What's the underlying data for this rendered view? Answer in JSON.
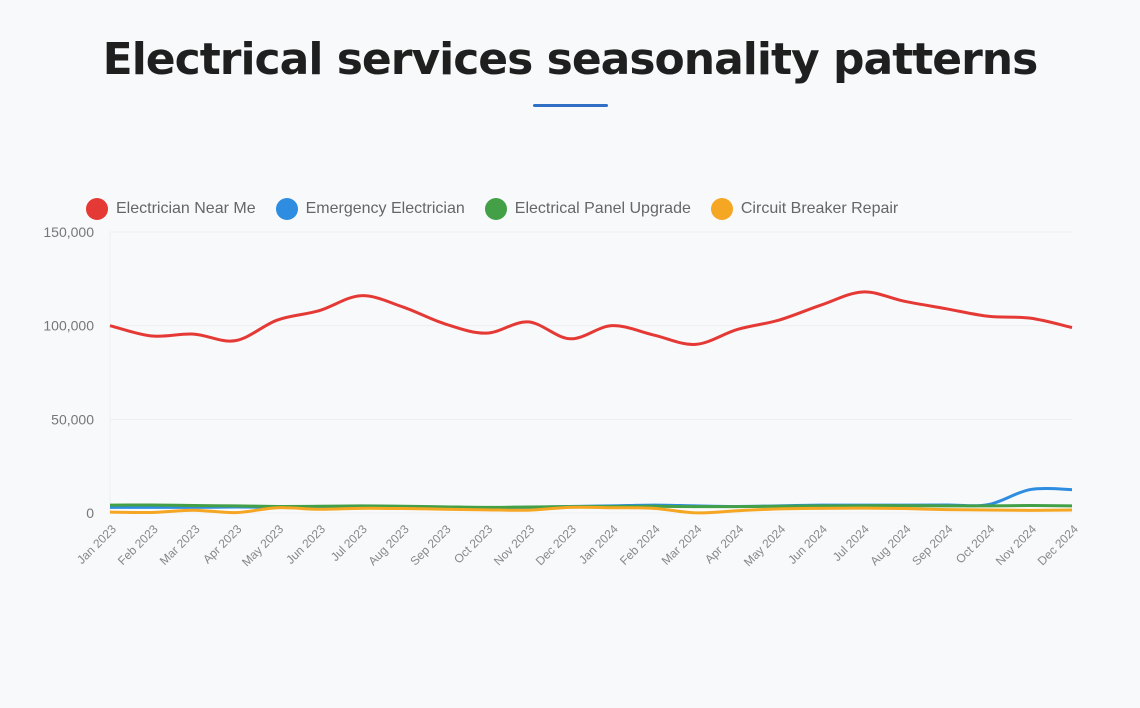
{
  "chart_data": {
    "type": "line",
    "title": "Electrical services seasonality patterns",
    "xlabel": "",
    "ylabel": "",
    "ylim": [
      0,
      150000
    ],
    "yticks": [
      "0",
      "50,000",
      "100,000",
      "150,000"
    ],
    "ytick_values": [
      0,
      50000,
      100000,
      150000
    ],
    "legend_position": "top-left",
    "grid": true,
    "categories": [
      "Jan 2023",
      "Feb 2023",
      "Mar 2023",
      "Apr 2023",
      "May 2023",
      "Jun 2023",
      "Jul 2023",
      "Aug 2023",
      "Sep 2023",
      "Oct 2023",
      "Nov 2023",
      "Dec 2023",
      "Jan 2024",
      "Feb 2024",
      "Mar 2024",
      "Apr 2024",
      "May 2024",
      "Jun 2024",
      "Jul 2024",
      "Aug 2024",
      "Sep 2024",
      "Oct 2024",
      "Nov 2024",
      "Dec 2024"
    ],
    "series": [
      {
        "name": "Electrician Near Me",
        "color": "#e53935",
        "values": [
          100000,
          94500,
          95500,
          92000,
          103000,
          108000,
          116000,
          110000,
          101000,
          96000,
          102000,
          93000,
          100000,
          95000,
          90000,
          98000,
          103000,
          111000,
          118000,
          113000,
          109000,
          105000,
          104000,
          99000
        ]
      },
      {
        "name": "Emergency Electrician",
        "color": "#2e8de0",
        "values": [
          3000,
          3000,
          3000,
          3200,
          3000,
          3200,
          3500,
          3300,
          3000,
          2800,
          3000,
          3500,
          3800,
          4200,
          3800,
          3500,
          3800,
          4200,
          4200,
          4200,
          4300,
          4500,
          12500,
          12500
        ]
      },
      {
        "name": "Electrical Panel Upgrade",
        "color": "#43a047",
        "values": [
          4200,
          4300,
          4000,
          3800,
          3500,
          3600,
          3800,
          3600,
          3300,
          3000,
          3200,
          3400,
          3500,
          3600,
          3400,
          3400,
          3600,
          3800,
          3900,
          3900,
          3800,
          3800,
          4000,
          3800
        ]
      },
      {
        "name": "Circuit Breaker Repair",
        "color": "#f5a623",
        "values": [
          500,
          300,
          1500,
          200,
          2800,
          2000,
          2500,
          2400,
          2000,
          1700,
          1500,
          3000,
          2800,
          2500,
          100,
          1200,
          2200,
          2500,
          2600,
          2400,
          1800,
          1600,
          1400,
          1600
        ]
      }
    ]
  }
}
